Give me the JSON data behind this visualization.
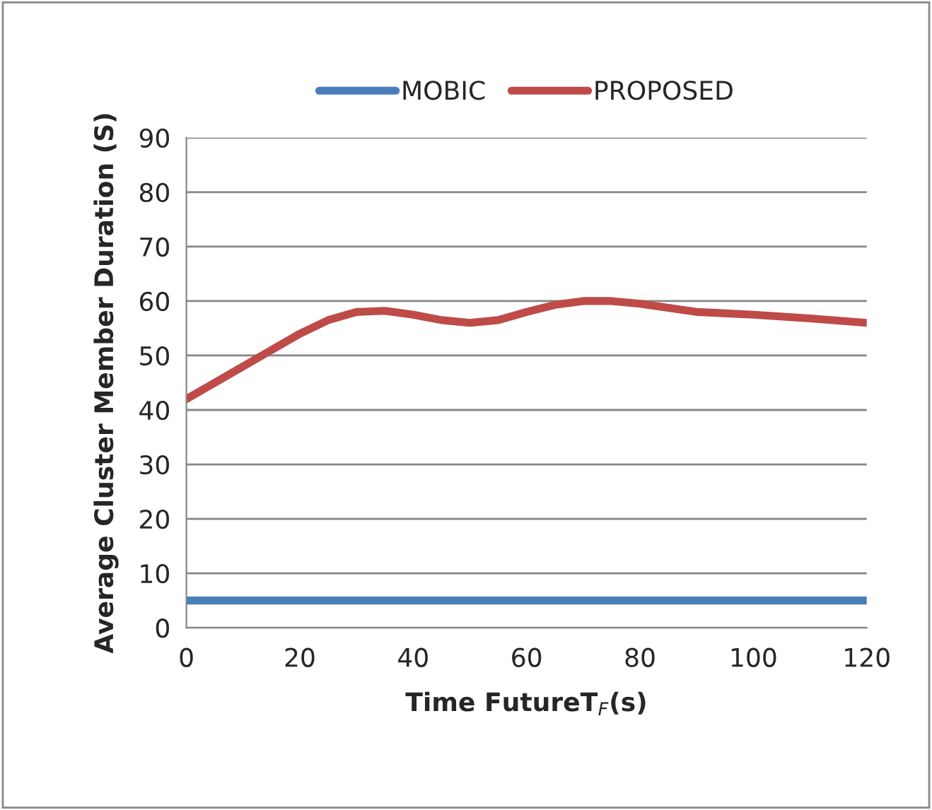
{
  "chart_data": {
    "type": "line",
    "xlabel": "Time FutureT$_{F}$(s)",
    "ylabel": "Average Cluster Member Duration (S)",
    "x": [
      0,
      10,
      20,
      25,
      30,
      35,
      40,
      45,
      50,
      55,
      60,
      65,
      70,
      75,
      80,
      90,
      100,
      110,
      120
    ],
    "series": [
      {
        "name": "MOBIC",
        "color": "#4a7ebb",
        "values": [
          5,
          5,
          5,
          5,
          5,
          5,
          5,
          5,
          5,
          5,
          5,
          5,
          5,
          5,
          5,
          5,
          5,
          5,
          5
        ]
      },
      {
        "name": "PROPOSED",
        "color": "#be4b48",
        "values": [
          42,
          48,
          54,
          56.5,
          58,
          58.2,
          57.5,
          56.5,
          56,
          56.5,
          58,
          59.3,
          60,
          60,
          59.5,
          58,
          57.5,
          56.8,
          56
        ]
      }
    ],
    "xlim": [
      0,
      120
    ],
    "xticks": [
      0,
      20,
      40,
      60,
      80,
      100,
      120
    ],
    "ylim": [
      0,
      90
    ],
    "yticks": [
      0,
      10,
      20,
      30,
      40,
      50,
      60,
      70,
      80,
      90
    ],
    "grid": "y",
    "legend": "top",
    "marker": "none",
    "line_style": "solid"
  }
}
